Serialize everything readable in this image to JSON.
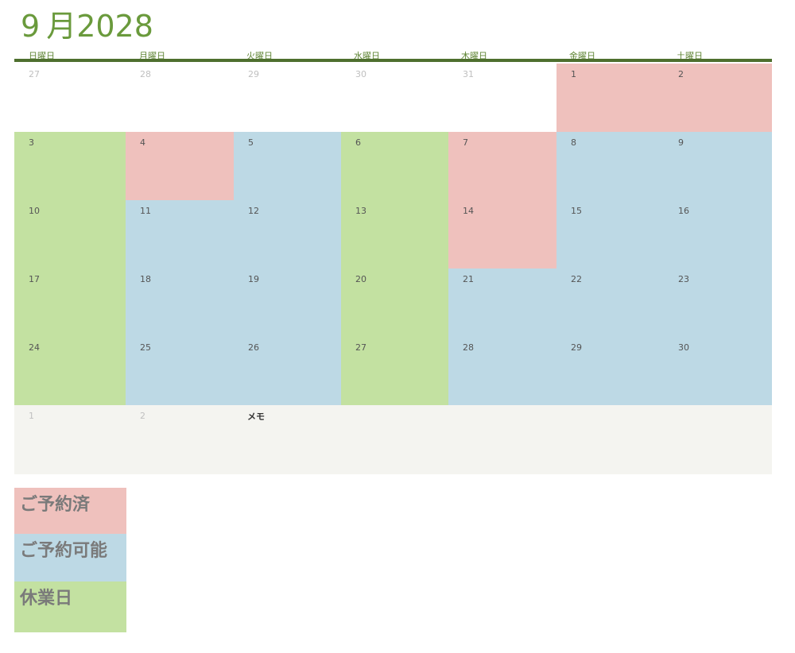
{
  "header": {
    "title_day": "9",
    "title_month": "月2028"
  },
  "weekdays": [
    "日曜日",
    "月曜日",
    "火曜日",
    "水曜日",
    "木曜日",
    "金曜日",
    "土曜日"
  ],
  "calendar": {
    "rows": [
      [
        "27",
        "28",
        "29",
        "30",
        "31",
        "1",
        "2"
      ],
      [
        "3",
        "4",
        "5",
        "6",
        "7",
        "8",
        "9"
      ],
      [
        "10",
        "11",
        "12",
        "13",
        "14",
        "15",
        "16"
      ],
      [
        "17",
        "18",
        "19",
        "20",
        "21",
        "22",
        "23"
      ],
      [
        "24",
        "25",
        "26",
        "27",
        "28",
        "29",
        "30"
      ],
      [
        "1",
        "2"
      ]
    ],
    "statuses": [
      [
        "none",
        "none",
        "none",
        "none",
        "none",
        "booked",
        "booked"
      ],
      [
        "closed",
        "booked",
        "available",
        "closed",
        "booked",
        "available",
        "available"
      ],
      [
        "closed",
        "available",
        "available",
        "closed",
        "booked",
        "available",
        "available"
      ],
      [
        "closed",
        "available",
        "available",
        "closed",
        "available",
        "available",
        "available"
      ],
      [
        "closed",
        "available",
        "available",
        "closed",
        "available",
        "available",
        "available"
      ],
      [
        "out",
        "out"
      ]
    ],
    "memo_label": "メモ"
  },
  "legend": {
    "booked": "ご予約済",
    "available": "ご予約可能",
    "closed": "休業日"
  },
  "colors": {
    "booked": "#efc1bd",
    "available": "#bdd9e5",
    "closed": "#c3e1a1",
    "accent": "#6a9a3c",
    "rule": "#4e6f2e"
  }
}
